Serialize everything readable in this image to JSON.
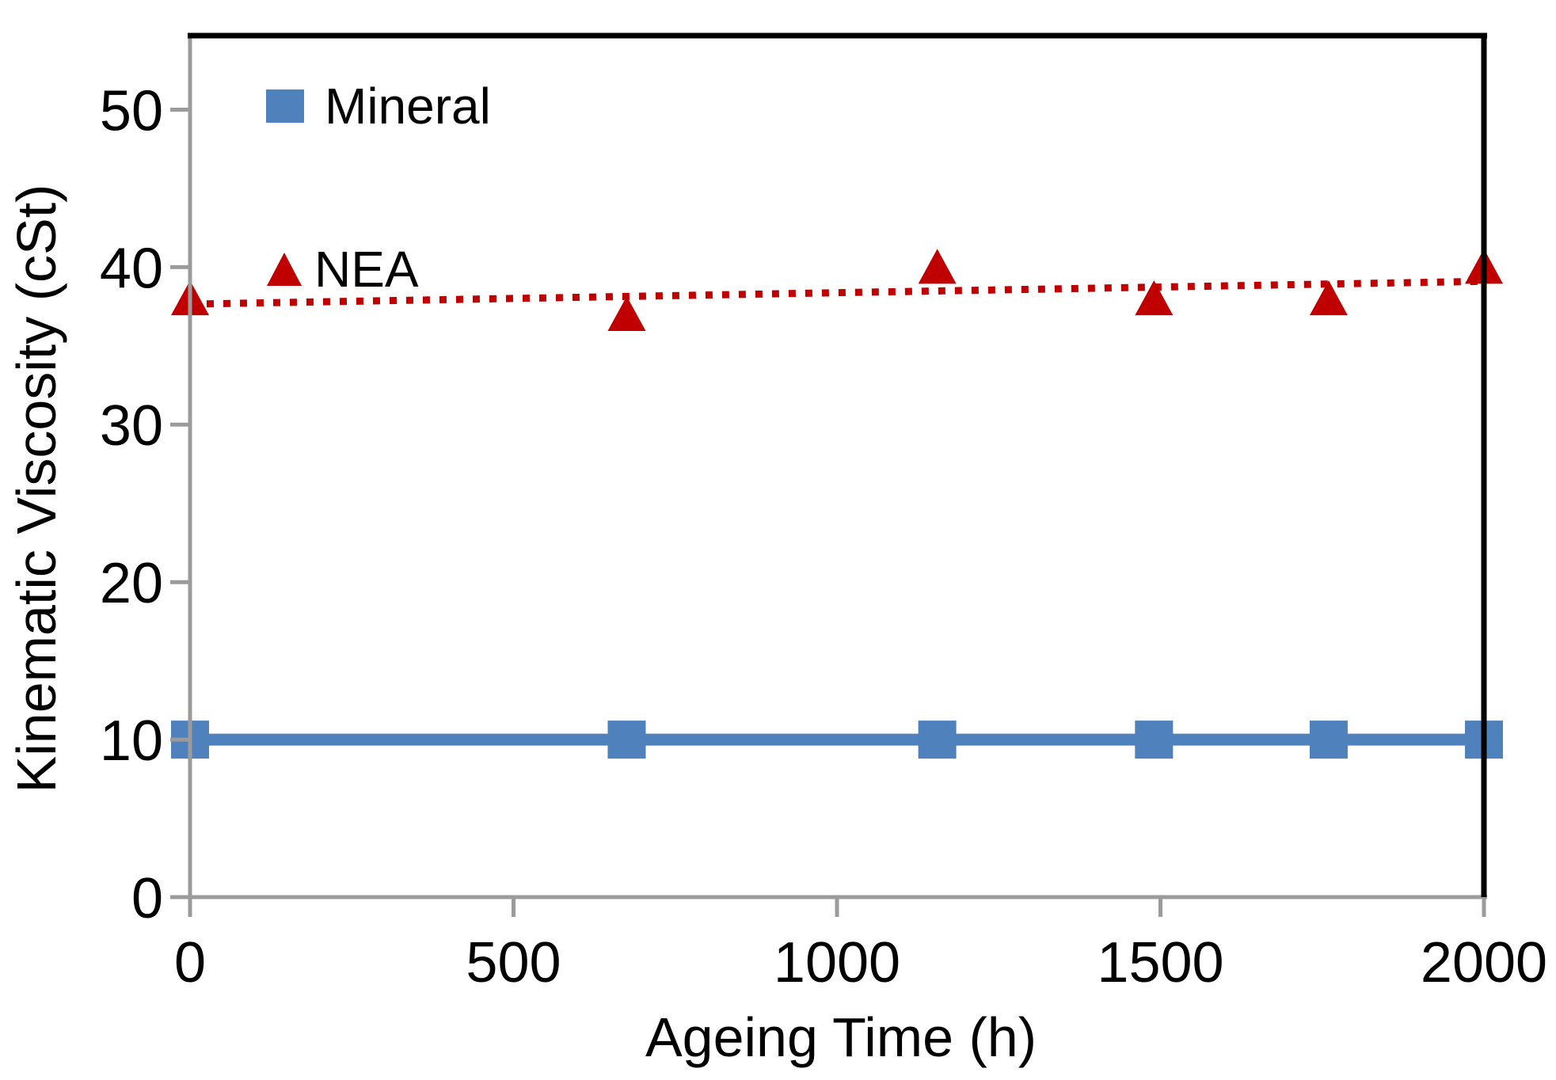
{
  "chart_data": {
    "type": "scatter",
    "title": "",
    "xlabel": "Ageing Time (h)",
    "ylabel": "Kinematic Viscosity (cSt)",
    "xlim": [
      0,
      2000
    ],
    "ylim": [
      0,
      54.7
    ],
    "x_ticks": [
      "0",
      "500",
      "1000",
      "1500",
      "2000"
    ],
    "x_tick_values": [
      0,
      500,
      1000,
      1500,
      2000
    ],
    "y_ticks": [
      "0",
      "10",
      "20",
      "30",
      "40",
      "50"
    ],
    "y_tick_values": [
      0,
      10,
      20,
      30,
      40,
      50
    ],
    "grid": false,
    "legend_position": "top-left-inside",
    "series": [
      {
        "name": "Mineral",
        "marker": "square",
        "color": "#4F81BD",
        "line": "solid",
        "x": [
          0,
          675,
          1155,
          1490,
          1760,
          2000
        ],
        "y": [
          10,
          10,
          10,
          10,
          10,
          10
        ]
      },
      {
        "name": "NEA",
        "marker": "triangle",
        "color": "#C00000",
        "line": "none",
        "x": [
          0,
          675,
          1155,
          1490,
          1760,
          2000
        ],
        "y": [
          38,
          37,
          40,
          38,
          38,
          40
        ],
        "trendline": {
          "type": "linear",
          "style": "dotted",
          "x": [
            0,
            2000
          ],
          "y": [
            37.65,
            39.1
          ]
        }
      }
    ]
  },
  "style": {
    "axis_color": "#9B9B9B",
    "border_color": "#000000",
    "text_color": "#000000",
    "mineral_blue": "#4F81BD",
    "nea_red": "#C00000"
  }
}
